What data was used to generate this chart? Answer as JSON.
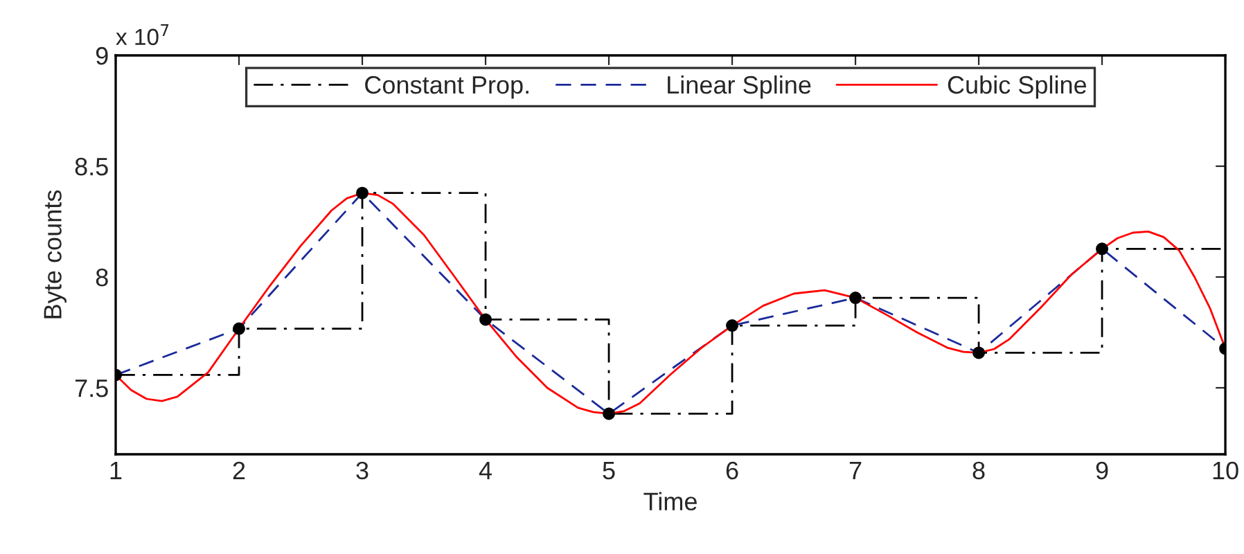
{
  "chart_data": {
    "type": "line",
    "xlabel": "Time",
    "ylabel": "Byte counts",
    "annotations": [
      "x 10$^{7}$"
    ],
    "xlim": [
      1,
      10
    ],
    "ylim": [
      7.2,
      9
    ],
    "xticks": [
      1,
      2,
      3,
      4,
      5,
      6,
      7,
      8,
      9,
      10
    ],
    "yticks": [
      7.5,
      8,
      8.5,
      9
    ],
    "grid": false,
    "legend": "top",
    "series": [
      {
        "name": "Constant Prop.",
        "type": "step",
        "color": "#000000",
        "line_style": "dashdot",
        "x": [
          1,
          2,
          3,
          4,
          5,
          6,
          7,
          8,
          9,
          10
        ],
        "values": [
          7.558,
          7.767,
          8.379,
          7.808,
          7.383,
          7.781,
          7.906,
          7.658,
          8.127,
          8.127
        ]
      },
      {
        "name": "Linear Spline",
        "color": "#1a2a9a",
        "line_style": "dashed",
        "x": [
          1,
          2,
          3,
          4,
          5,
          6,
          7,
          8,
          9,
          10
        ],
        "values": [
          7.558,
          7.767,
          8.379,
          7.808,
          7.383,
          7.781,
          7.906,
          7.658,
          8.127,
          7.677
        ]
      },
      {
        "name": "Cubic Spline",
        "type": "line",
        "color": "#ff0000",
        "line_style": "solid",
        "x": [
          1,
          1.125,
          1.25,
          1.375,
          1.5,
          1.75,
          2,
          2.25,
          2.5,
          2.75,
          2.875,
          3,
          3.125,
          3.25,
          3.5,
          3.75,
          4,
          4.25,
          4.5,
          4.75,
          4.875,
          5,
          5.125,
          5.25,
          5.5,
          5.75,
          6,
          6.25,
          6.5,
          6.75,
          7,
          7.25,
          7.5,
          7.75,
          7.875,
          8,
          8.125,
          8.25,
          8.5,
          8.75,
          9,
          9.125,
          9.25,
          9.375,
          9.5,
          9.625,
          9.75,
          9.875,
          10
        ],
        "values": [
          7.558,
          7.49,
          7.45,
          7.44,
          7.46,
          7.57,
          7.767,
          7.96,
          8.14,
          8.3,
          8.355,
          8.379,
          8.37,
          8.33,
          8.19,
          8.0,
          7.808,
          7.64,
          7.5,
          7.41,
          7.39,
          7.383,
          7.395,
          7.43,
          7.56,
          7.68,
          7.781,
          7.87,
          7.925,
          7.94,
          7.906,
          7.83,
          7.75,
          7.68,
          7.662,
          7.658,
          7.675,
          7.72,
          7.86,
          8.01,
          8.127,
          8.175,
          8.2,
          8.205,
          8.18,
          8.12,
          8.0,
          7.86,
          7.677
        ]
      },
      {
        "type": "scatter",
        "color": "#000000",
        "marker": "circle",
        "x": [
          1,
          2,
          3,
          4,
          5,
          6,
          7,
          8,
          9,
          10
        ],
        "values": [
          7.558,
          7.767,
          8.379,
          7.808,
          7.383,
          7.781,
          7.906,
          7.658,
          8.127,
          7.677
        ]
      }
    ]
  }
}
